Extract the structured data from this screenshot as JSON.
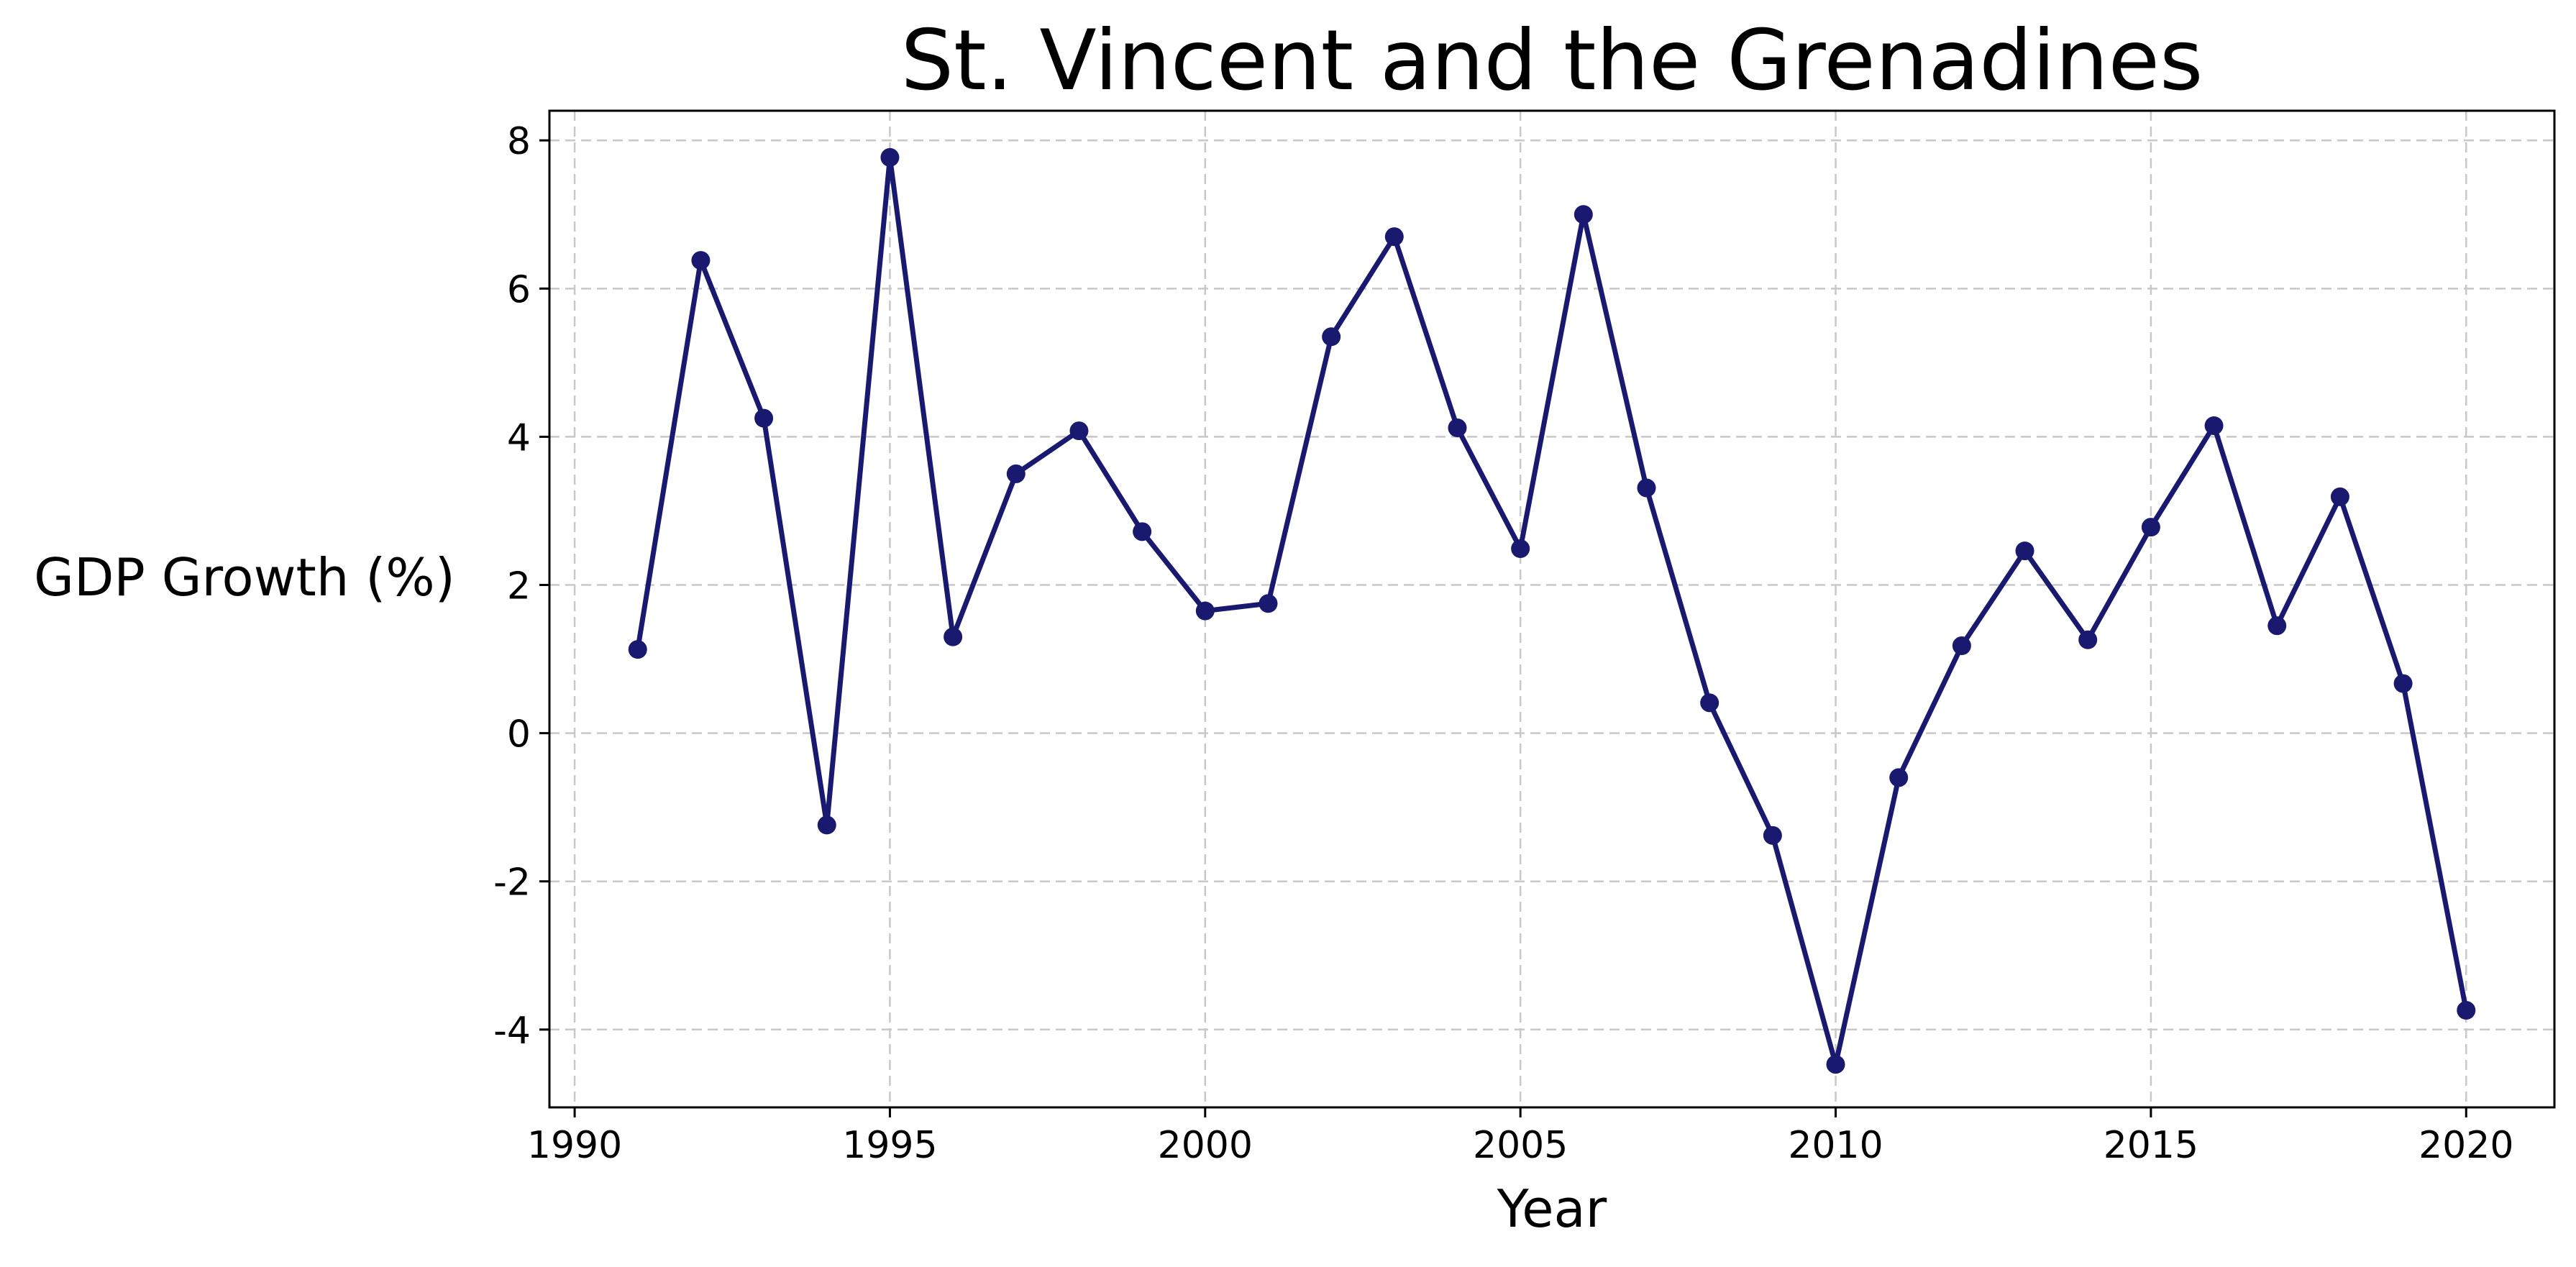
{
  "chart_data": {
    "type": "line",
    "title": "St. Vincent and the Grenadines",
    "xlabel": "Year",
    "ylabel": "GDP Growth (%)",
    "xlim": [
      1989.6,
      2021.4
    ],
    "ylim": [
      -5.05,
      8.4
    ],
    "grid": true,
    "xticks": [
      1990,
      1995,
      2000,
      2005,
      2010,
      2015,
      2020
    ],
    "yticks": [
      -4,
      -2,
      0,
      2,
      4,
      6,
      8
    ],
    "color": "#191970",
    "x": [
      1991,
      1992,
      1993,
      1994,
      1995,
      1996,
      1997,
      1998,
      1999,
      2000,
      2001,
      2002,
      2003,
      2004,
      2005,
      2006,
      2007,
      2008,
      2009,
      2010,
      2011,
      2012,
      2013,
      2014,
      2015,
      2016,
      2017,
      2018,
      2019,
      2020
    ],
    "y": [
      1.13,
      6.38,
      4.25,
      -1.24,
      7.77,
      1.3,
      3.5,
      4.08,
      2.72,
      1.65,
      1.75,
      5.35,
      6.7,
      4.12,
      2.49,
      7.0,
      3.31,
      0.41,
      -1.38,
      -4.47,
      -0.6,
      1.18,
      2.46,
      1.26,
      2.78,
      4.15,
      1.45,
      3.19,
      0.67,
      -3.74
    ]
  }
}
